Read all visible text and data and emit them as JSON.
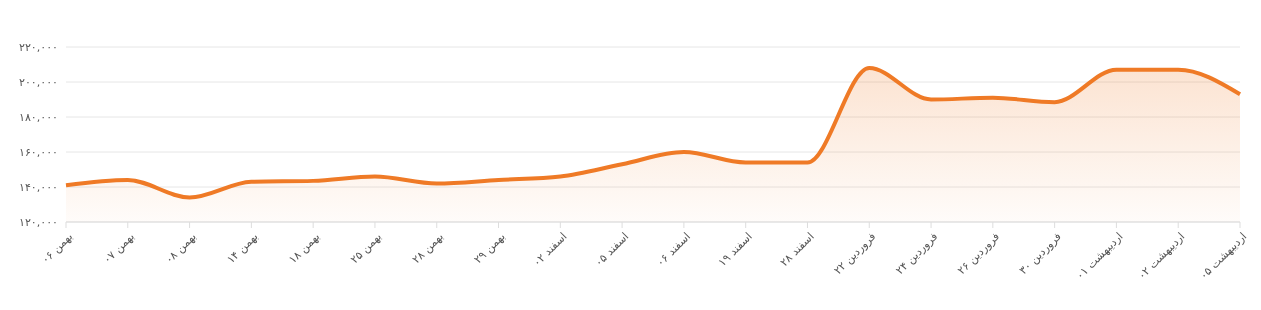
{
  "chart_data": {
    "type": "area",
    "categories": [
      "بهمن ۰۶",
      "بهمن ۰۷",
      "بهمن ۰۸",
      "بهمن ۱۴",
      "بهمن ۱۸",
      "بهمن ۲۵",
      "بهمن ۲۸",
      "بهمن ۲۹",
      "اسفند ۰۲",
      "اسفند ۰۵",
      "اسفند ۰۶",
      "اسفند ۱۹",
      "اسفند ۲۸",
      "فروردین ۲۲",
      "فروردین ۲۴",
      "فروردین ۲۶",
      "فروردین ۳۰",
      "اردیبهشت ۰۱",
      "اردیبهشت ۰۲",
      "اردیبهشت ۰۵"
    ],
    "series": [
      {
        "color": "#ef7a26",
        "values": [
          141000,
          144000,
          134000,
          143000,
          143500,
          146000,
          142000,
          144000,
          146000,
          153000,
          160000,
          154000,
          154000,
          208000,
          190000,
          191000,
          188500,
          207000,
          207000,
          193000
        ]
      }
    ],
    "ylim": [
      120000,
      220000
    ],
    "yticks": [
      {
        "value": 120000,
        "label": "۱۲۰,۰۰۰"
      },
      {
        "value": 140000,
        "label": "۱۴۰,۰۰۰"
      },
      {
        "value": 160000,
        "label": "۱۶۰,۰۰۰"
      },
      {
        "value": 180000,
        "label": "۱۸۰,۰۰۰"
      },
      {
        "value": 200000,
        "label": "۲۰۰,۰۰۰"
      },
      {
        "value": 220000,
        "label": "۲۲۰,۰۰۰"
      }
    ],
    "grid": "y",
    "legend": false
  }
}
